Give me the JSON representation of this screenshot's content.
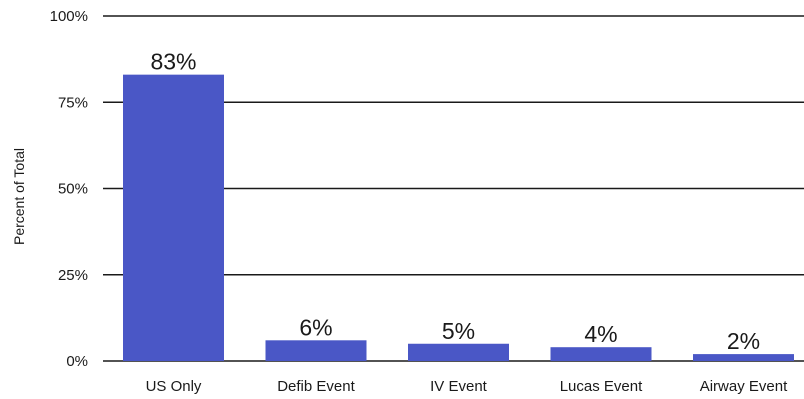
{
  "chart_data": {
    "type": "bar",
    "title": "",
    "xlabel": "",
    "ylabel": "Percent of Total",
    "categories": [
      "US Only",
      "Defib Event",
      "IV Event",
      "Lucas Event",
      "Airway Event"
    ],
    "values": [
      83,
      6,
      5,
      4,
      2
    ],
    "data_labels": [
      "83%",
      "6%",
      "5%",
      "4%",
      "2%"
    ],
    "ylim": [
      0,
      100
    ],
    "yticks": [
      0,
      25,
      50,
      75,
      100
    ],
    "ytick_labels": [
      "0%",
      "25%",
      "50%",
      "75%",
      "100%"
    ],
    "grid": true,
    "legend": "none",
    "bar_color": "#4a57c6",
    "grid_color": "#1a1a1a"
  }
}
